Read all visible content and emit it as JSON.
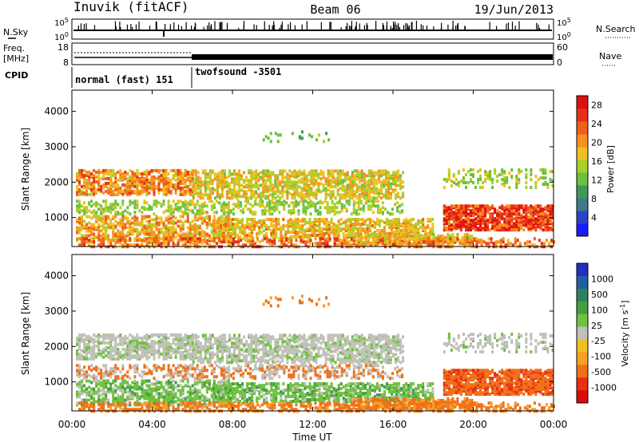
{
  "header": {
    "station": "Inuvik (fitACF)",
    "beam": "Beam 06",
    "date": "19/Jun/2013"
  },
  "side_labels": {
    "nsky": "N.Sky",
    "nsearch": "N.Search",
    "freq_line1": "Freq.",
    "freq_line2": "[MHz]",
    "nave": "Nave",
    "cpid": "CPID"
  },
  "strip_ticks": {
    "nsky_left": [
      "10^5",
      "10^0"
    ],
    "nsearch_right": [
      "10^5",
      "10^0"
    ],
    "freq_left": [
      "18",
      "8"
    ],
    "nave_right": [
      "60",
      "0"
    ]
  },
  "cpid_segments": [
    {
      "label": "normal (fast) 151"
    },
    {
      "label": "twofsound -3501"
    }
  ],
  "chart_data": [
    {
      "type": "heatmap",
      "title": "",
      "xlabel": "Time UT",
      "ylabel": "Slant Range [km]",
      "x_ticks": [
        "00:00",
        "04:00",
        "08:00",
        "12:00",
        "16:00",
        "20:00",
        "00:00"
      ],
      "y_ticks": [
        1000,
        2000,
        3000,
        4000
      ],
      "xlim_hours": [
        0,
        24
      ],
      "ylim_km": [
        180,
        4600
      ],
      "colorbar": {
        "label": "Power [dB]",
        "ticks": [
          4,
          8,
          12,
          16,
          20,
          24,
          28
        ],
        "range": [
          0,
          30
        ],
        "colors": [
          "#1a1aff",
          "#2a44c8",
          "#3d7a8a",
          "#3a9a5a",
          "#6ac040",
          "#a8d028",
          "#f0c020",
          "#f89020",
          "#f06018",
          "#e83018",
          "#e01010"
        ]
      }
    },
    {
      "type": "heatmap",
      "title": "",
      "xlabel": "Time UT",
      "ylabel": "Slant Range [km]",
      "x_ticks": [
        "00:00",
        "04:00",
        "08:00",
        "12:00",
        "16:00",
        "20:00",
        "00:00"
      ],
      "y_ticks": [
        1000,
        2000,
        3000,
        4000
      ],
      "xlim_hours": [
        0,
        24
      ],
      "ylim_km": [
        180,
        4600
      ],
      "colorbar": {
        "label": "Velocity [m s^-1]",
        "ticks": [
          1000,
          500,
          100,
          25,
          -25,
          -100,
          -500,
          -1000
        ],
        "colors": [
          "#2030c0",
          "#2060a0",
          "#308060",
          "#40a040",
          "#70c040",
          "#c0c0b8",
          "#f0c020",
          "#f8a020",
          "#f07018",
          "#e83010",
          "#e00808"
        ]
      },
      "ground_scatter_color": "#c0c0b8"
    }
  ]
}
